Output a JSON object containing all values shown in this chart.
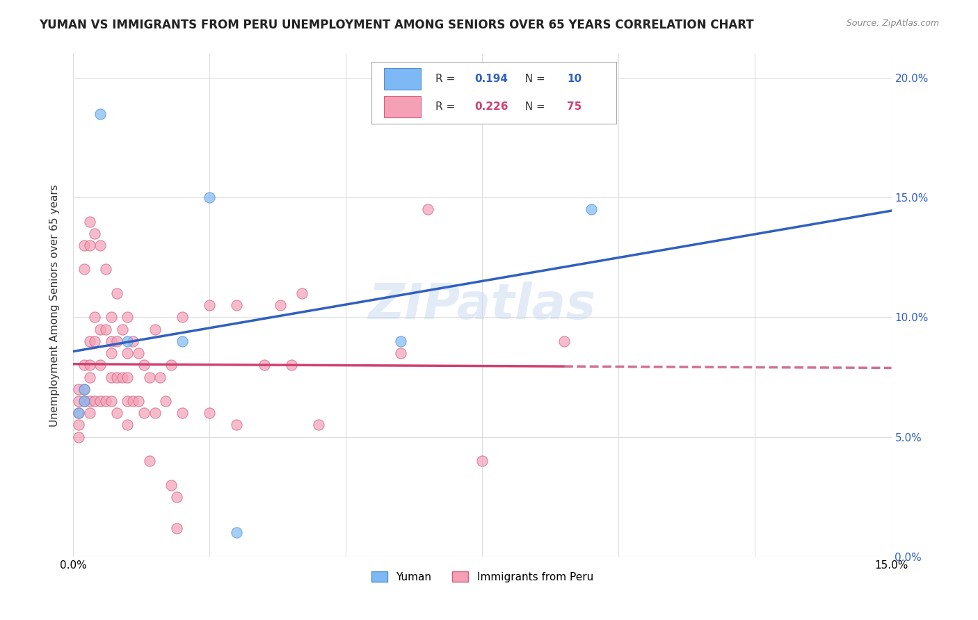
{
  "title": "YUMAN VS IMMIGRANTS FROM PERU UNEMPLOYMENT AMONG SENIORS OVER 65 YEARS CORRELATION CHART",
  "source": "Source: ZipAtlas.com",
  "xlabel": "",
  "ylabel": "Unemployment Among Seniors over 65 years",
  "xlim": [
    0.0,
    0.15
  ],
  "ylim": [
    0.0,
    0.21
  ],
  "xticks": [
    0.0,
    0.025,
    0.05,
    0.075,
    0.1,
    0.125,
    0.15
  ],
  "yticks": [
    0.0,
    0.05,
    0.1,
    0.15,
    0.2
  ],
  "ytick_labels_right": [
    "0.0%",
    "5.0%",
    "10.0%",
    "15.0%",
    "20.0%"
  ],
  "xtick_labels": [
    "0.0%",
    "",
    "",
    "",
    "",
    "",
    "15.0%"
  ],
  "background_color": "#ffffff",
  "grid_color": "#dddddd",
  "yuman_color": "#7EB8F5",
  "peru_color": "#F5A0B5",
  "yuman_edge_color": "#5090D0",
  "peru_edge_color": "#D06080",
  "yuman_R": 0.194,
  "yuman_N": 10,
  "peru_R": 0.226,
  "peru_N": 75,
  "yuman_line_color": "#3060C0",
  "peru_line_color": "#D04070",
  "peru_line_dashed_color": "#D07090",
  "watermark": "ZIPatlas",
  "watermark_color": "#C8D8F0",
  "yuman_x": [
    0.01,
    0.005,
    0.025,
    0.02,
    0.002,
    0.002,
    0.001,
    0.06,
    0.03,
    0.095
  ],
  "yuman_y": [
    0.09,
    0.185,
    0.15,
    0.09,
    0.07,
    0.065,
    0.06,
    0.09,
    0.01,
    0.145
  ],
  "peru_x": [
    0.001,
    0.001,
    0.001,
    0.001,
    0.001,
    0.002,
    0.002,
    0.002,
    0.002,
    0.002,
    0.003,
    0.003,
    0.003,
    0.003,
    0.003,
    0.003,
    0.003,
    0.004,
    0.004,
    0.004,
    0.004,
    0.005,
    0.005,
    0.005,
    0.005,
    0.006,
    0.006,
    0.006,
    0.007,
    0.007,
    0.007,
    0.007,
    0.007,
    0.008,
    0.008,
    0.008,
    0.008,
    0.009,
    0.009,
    0.01,
    0.01,
    0.01,
    0.01,
    0.01,
    0.011,
    0.011,
    0.012,
    0.012,
    0.013,
    0.013,
    0.014,
    0.014,
    0.015,
    0.015,
    0.016,
    0.017,
    0.018,
    0.018,
    0.019,
    0.019,
    0.02,
    0.02,
    0.025,
    0.025,
    0.03,
    0.03,
    0.035,
    0.038,
    0.04,
    0.042,
    0.045,
    0.06,
    0.065,
    0.075,
    0.09
  ],
  "peru_y": [
    0.07,
    0.065,
    0.06,
    0.055,
    0.05,
    0.13,
    0.12,
    0.08,
    0.07,
    0.065,
    0.14,
    0.13,
    0.09,
    0.08,
    0.075,
    0.065,
    0.06,
    0.135,
    0.1,
    0.09,
    0.065,
    0.13,
    0.095,
    0.08,
    0.065,
    0.12,
    0.095,
    0.065,
    0.1,
    0.09,
    0.085,
    0.075,
    0.065,
    0.11,
    0.09,
    0.075,
    0.06,
    0.095,
    0.075,
    0.1,
    0.085,
    0.075,
    0.065,
    0.055,
    0.09,
    0.065,
    0.085,
    0.065,
    0.08,
    0.06,
    0.075,
    0.04,
    0.095,
    0.06,
    0.075,
    0.065,
    0.08,
    0.03,
    0.025,
    0.012,
    0.1,
    0.06,
    0.105,
    0.06,
    0.105,
    0.055,
    0.08,
    0.105,
    0.08,
    0.11,
    0.055,
    0.085,
    0.145,
    0.04,
    0.09
  ],
  "legend_yuman_label": "Yuman",
  "legend_peru_label": "Immigrants from Peru",
  "marker_size": 120,
  "marker_alpha": 0.7,
  "line_width": 2.5
}
